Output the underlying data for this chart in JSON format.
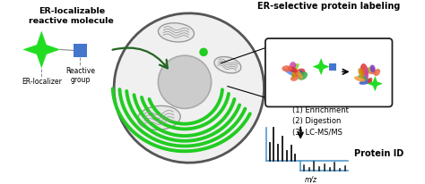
{
  "bg_color": "#ffffff",
  "title_er_selective": "ER-selective protein labeling",
  "label_er_localizable": "ER-localizable\nreactive molecule",
  "label_er_localizer": "ER-localizer",
  "label_reactive_group": "Reactive\ngroup",
  "steps_text": "(1) Enrichment\n(2) Digestion\n(3) LC-MS/MS",
  "label_protein_id": "Protein ID",
  "label_mz": "m/z",
  "green_color": "#22dd22",
  "blue_color": "#4477cc",
  "dark_green": "#226622",
  "cell_fill": "#f0f0f0",
  "cell_outline_color": "#555555",
  "er_membrane_color": "#22cc22",
  "box_outline_color": "#222222",
  "spectrum_line_color": "#5599cc",
  "bar_color": "#111111",
  "mito_fill": "#e8e8e8",
  "mito_outline": "#999999",
  "nucleus_fill": "#cccccc",
  "nucleus_outline": "#aaaaaa"
}
